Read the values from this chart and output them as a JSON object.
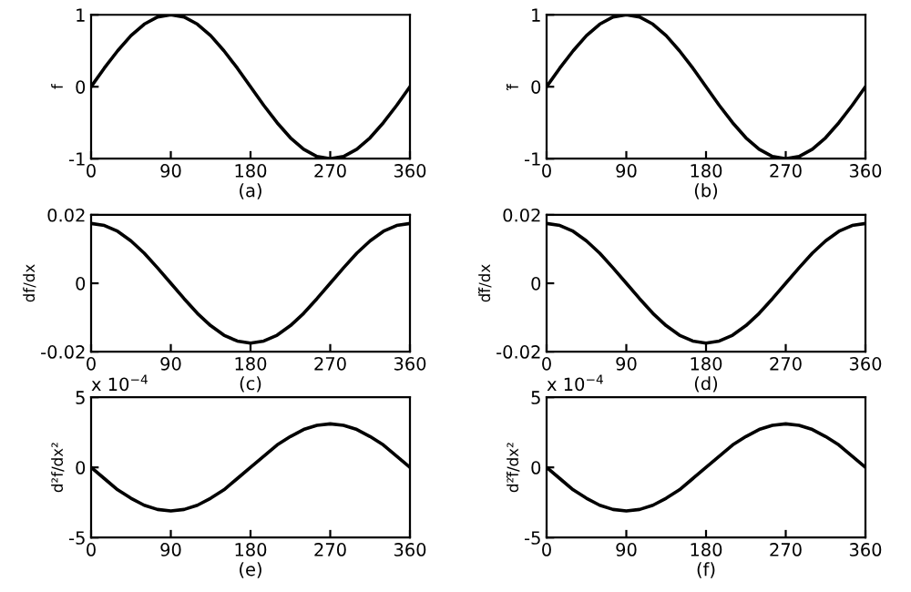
{
  "chart_data": [
    {
      "type": "line",
      "xlabel": "(a)",
      "ylabel": "f",
      "x": [
        0,
        15,
        30,
        45,
        60,
        75,
        90,
        105,
        120,
        135,
        150,
        165,
        180,
        195,
        210,
        225,
        240,
        255,
        270,
        285,
        300,
        315,
        330,
        345,
        360
      ],
      "xlim": [
        0,
        360
      ],
      "xticks": [
        0,
        90,
        180,
        270,
        360
      ],
      "ylim": [
        -1,
        1
      ],
      "yticks": [
        -1,
        0,
        1
      ],
      "grid": false,
      "legend": false,
      "series": [
        {
          "color": "#000000",
          "values": [
            0,
            0.26,
            0.5,
            0.71,
            0.87,
            0.97,
            1,
            0.97,
            0.87,
            0.71,
            0.5,
            0.26,
            0,
            -0.26,
            -0.5,
            -0.71,
            -0.87,
            -0.97,
            -1,
            -0.97,
            -0.87,
            -0.71,
            -0.5,
            -0.26,
            0
          ]
        }
      ]
    },
    {
      "type": "line",
      "xlabel": "(b)",
      "ylabel": "f̃",
      "x": [
        0,
        15,
        30,
        45,
        60,
        75,
        90,
        105,
        120,
        135,
        150,
        165,
        180,
        195,
        210,
        225,
        240,
        255,
        270,
        285,
        300,
        315,
        330,
        345,
        360
      ],
      "xlim": [
        0,
        360
      ],
      "xticks": [
        0,
        90,
        180,
        270,
        360
      ],
      "ylim": [
        -1,
        1
      ],
      "yticks": [
        -1,
        0,
        1
      ],
      "grid": false,
      "legend": false,
      "series": [
        {
          "color": "#000000",
          "values": [
            0,
            0.26,
            0.5,
            0.71,
            0.87,
            0.97,
            1,
            0.97,
            0.87,
            0.71,
            0.5,
            0.26,
            0,
            -0.26,
            -0.5,
            -0.71,
            -0.87,
            -0.97,
            -1,
            -0.97,
            -0.87,
            -0.71,
            -0.5,
            -0.26,
            0
          ]
        }
      ]
    },
    {
      "type": "line",
      "xlabel": "(c)",
      "ylabel": "df/dx",
      "x": [
        0,
        15,
        30,
        45,
        60,
        75,
        90,
        105,
        120,
        135,
        150,
        165,
        180,
        195,
        210,
        225,
        240,
        255,
        270,
        285,
        300,
        315,
        330,
        345,
        360
      ],
      "xlim": [
        0,
        360
      ],
      "xticks": [
        0,
        90,
        180,
        270,
        360
      ],
      "ylim": [
        -0.02,
        0.02
      ],
      "yticks": [
        -0.02,
        0,
        0.02
      ],
      "grid": false,
      "legend": false,
      "series": [
        {
          "color": "#000000",
          "values": [
            0.0175,
            0.0169,
            0.0152,
            0.0124,
            0.0088,
            0.0045,
            0,
            -0.0045,
            -0.0088,
            -0.0124,
            -0.0152,
            -0.0169,
            -0.0175,
            -0.0169,
            -0.0152,
            -0.0124,
            -0.0088,
            -0.0045,
            0,
            0.0045,
            0.0088,
            0.0124,
            0.0152,
            0.0169,
            0.0175
          ]
        }
      ]
    },
    {
      "type": "line",
      "xlabel": "(d)",
      "ylabel": "df̃/dx",
      "x": [
        0,
        15,
        30,
        45,
        60,
        75,
        90,
        105,
        120,
        135,
        150,
        165,
        180,
        195,
        210,
        225,
        240,
        255,
        270,
        285,
        300,
        315,
        330,
        345,
        360
      ],
      "xlim": [
        0,
        360
      ],
      "xticks": [
        0,
        90,
        180,
        270,
        360
      ],
      "ylim": [
        -0.02,
        0.02
      ],
      "yticks": [
        -0.02,
        0,
        0.02
      ],
      "grid": false,
      "legend": false,
      "series": [
        {
          "color": "#000000",
          "values": [
            0.0175,
            0.0169,
            0.0152,
            0.0124,
            0.0088,
            0.0045,
            0,
            -0.0045,
            -0.0088,
            -0.0124,
            -0.0152,
            -0.0169,
            -0.0175,
            -0.0169,
            -0.0152,
            -0.0124,
            -0.0088,
            -0.0045,
            0,
            0.0045,
            0.0088,
            0.0124,
            0.0152,
            0.0169,
            0.0175
          ]
        }
      ]
    },
    {
      "type": "line",
      "xlabel": "(e)",
      "ylabel": "d²f/dx²",
      "annotations": [
        "x 10$^{−4}$"
      ],
      "x": [
        0,
        15,
        30,
        45,
        60,
        75,
        90,
        105,
        120,
        135,
        150,
        165,
        180,
        195,
        210,
        225,
        240,
        255,
        270,
        285,
        300,
        315,
        330,
        345,
        360
      ],
      "xlim": [
        0,
        360
      ],
      "xticks": [
        0,
        90,
        180,
        270,
        360
      ],
      "ylim": [
        -5,
        5
      ],
      "yticks": [
        -5,
        0,
        5
      ],
      "grid": false,
      "legend": false,
      "series": [
        {
          "color": "#000000",
          "values": [
            0,
            -0.8,
            -1.6,
            -2.2,
            -2.7,
            -3.0,
            -3.1,
            -3.0,
            -2.7,
            -2.2,
            -1.6,
            -0.8,
            0,
            0.8,
            1.6,
            2.2,
            2.7,
            3.0,
            3.1,
            3.0,
            2.7,
            2.2,
            1.6,
            0.8,
            0
          ]
        }
      ]
    },
    {
      "type": "line",
      "xlabel": "(f)",
      "ylabel": "d²f̃/dx²",
      "annotations": [
        "x 10$^{−4}$"
      ],
      "x": [
        0,
        15,
        30,
        45,
        60,
        75,
        90,
        105,
        120,
        135,
        150,
        165,
        180,
        195,
        210,
        225,
        240,
        255,
        270,
        285,
        300,
        315,
        330,
        345,
        360
      ],
      "xlim": [
        0,
        360
      ],
      "xticks": [
        0,
        90,
        180,
        270,
        360
      ],
      "ylim": [
        -5,
        5
      ],
      "yticks": [
        -5,
        0,
        5
      ],
      "grid": false,
      "legend": false,
      "series": [
        {
          "color": "#000000",
          "values": [
            0,
            -0.8,
            -1.6,
            -2.2,
            -2.7,
            -3.0,
            -3.1,
            -3.0,
            -2.7,
            -2.2,
            -1.6,
            -0.8,
            0,
            0.8,
            1.6,
            2.2,
            2.7,
            3.0,
            3.1,
            3.0,
            2.7,
            2.2,
            1.6,
            0.8,
            0
          ]
        }
      ]
    }
  ]
}
